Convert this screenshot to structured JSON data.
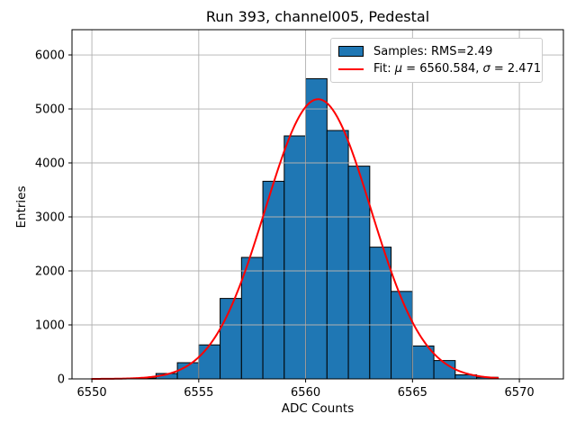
{
  "chart_data": {
    "type": "bar",
    "subtype": "histogram-with-gaussian-fit",
    "title": "Run 393, channel005, Pedestal",
    "xlabel": "ADC Counts",
    "ylabel": "Entries",
    "xlim": [
      6549.07,
      6572.06
    ],
    "ylim": [
      0,
      6467
    ],
    "xticks": [
      6550,
      6555,
      6560,
      6565,
      6570
    ],
    "yticks": [
      0,
      1000,
      2000,
      3000,
      4000,
      5000,
      6000
    ],
    "grid": true,
    "grid_color": "#b0b0b0",
    "background_color": "#ffffff",
    "histogram": {
      "bin_edges": [
        6552,
        6553,
        6554,
        6555,
        6556,
        6557,
        6558,
        6559,
        6560,
        6561,
        6562,
        6563,
        6564,
        6565,
        6566,
        6567,
        6568,
        6569
      ],
      "counts": [
        15,
        100,
        300,
        630,
        1490,
        2250,
        3660,
        4500,
        5560,
        4600,
        3940,
        2440,
        1620,
        610,
        340,
        75,
        30
      ],
      "fill_color": "#1f77b4",
      "edge_color": "#000000",
      "rms": 2.49
    },
    "fit": {
      "mu": 6560.584,
      "sigma": 2.471,
      "peak": 5180,
      "x_start": 6550.0,
      "x_end": 6569.0,
      "color": "#ff0000"
    },
    "legend": {
      "position": "upper right",
      "samples_label": "Samples: RMS=2.49",
      "fit_label_parts": {
        "pre": "Fit: ",
        "mu_symbol": "μ",
        "mid": " = 6560.584, ",
        "sigma_symbol": "σ",
        "post": " = 2.471"
      }
    }
  }
}
